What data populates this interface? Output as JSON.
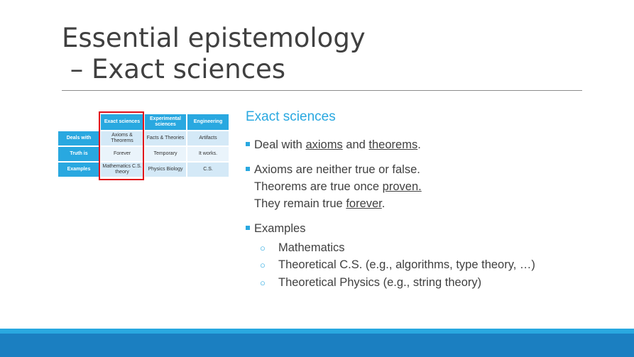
{
  "title": {
    "line1": "Essential epistemology",
    "line2": " – Exact sciences"
  },
  "table": {
    "headers": [
      "Exact sciences",
      "Experimental sciences",
      "Engineering"
    ],
    "rows": [
      {
        "label": "Deals with",
        "cells": [
          "Axioms & Theorems",
          "Facts & Theories",
          "Artifacts"
        ]
      },
      {
        "label": "Truth is",
        "cells": [
          "Forever",
          "Temporary",
          "It works."
        ]
      },
      {
        "label": "Examples",
        "cells": [
          "Mathematics C.S. theory",
          "Physics Biology",
          "C.S."
        ]
      }
    ]
  },
  "content": {
    "heading": "Exact sciences",
    "b1": {
      "pre": "Deal with ",
      "u1": "axioms",
      "mid": " and ",
      "u2": "theorems",
      "post": "."
    },
    "b2": {
      "line1": "Axioms are neither true or false.",
      "line2_pre": "Theorems are true once ",
      "line2_u": "proven.",
      "line3_pre": "They remain true ",
      "line3_u": "forever",
      "line3_post": "."
    },
    "b3": "Examples",
    "examples": [
      "Mathematics",
      "Theoretical C.S. (e.g., algorithms, type theory, …)",
      "Theoretical Physics (e.g., string theory)"
    ]
  },
  "colors": {
    "accent": "#29a8e0",
    "bar_dark": "#1b7fc1",
    "highlight": "#e0101a"
  }
}
